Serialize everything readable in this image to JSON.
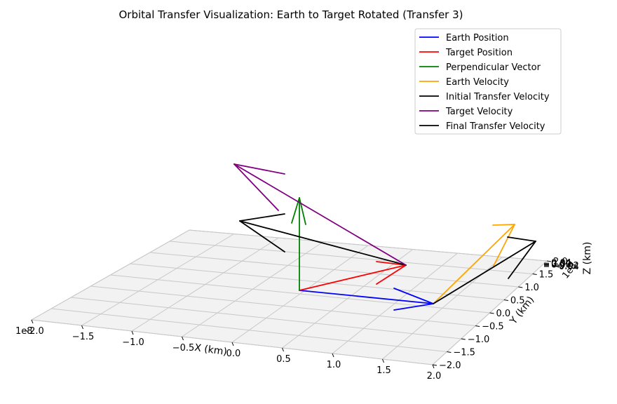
{
  "chart_data": {
    "type": "line",
    "title": "Orbital Transfer Visualization: Earth to Target Rotated (Transfer 3)",
    "xlabel": "X (km)",
    "ylabel": "Y (km)",
    "zlabel": "Z (km)",
    "x_offset_label": "1e8",
    "y_offset_label": "1e8",
    "x_ticks": [
      "−2.0",
      "−1.5",
      "−1.0",
      "−0.5",
      "0.0",
      "0.5",
      "1.0",
      "1.5",
      "2.0"
    ],
    "y_ticks": [
      "−2.0",
      "−1.5",
      "−1.0",
      "−0.5",
      "0.0",
      "0.5",
      "1.0",
      "1.5",
      "2.0"
    ],
    "z_ticks": [
      "−0.04",
      "−0.02",
      "0.00",
      "0.02",
      "0.04"
    ],
    "xlim": [
      -2.0,
      2.0
    ],
    "ylim": [
      -2.0,
      2.0
    ],
    "grid": true,
    "legend_position": "top-right",
    "series": [
      {
        "name": "Earth Position",
        "color": "#0000ff"
      },
      {
        "name": "Target Position",
        "color": "#ff0000"
      },
      {
        "name": "Perpendicular Vector",
        "color": "#008000"
      },
      {
        "name": "Earth Velocity",
        "color": "#ffa500"
      },
      {
        "name": "Initial Transfer Velocity",
        "color": "#000000"
      },
      {
        "name": "Target Velocity",
        "color": "#800080"
      },
      {
        "name": "Final Transfer Velocity",
        "color": "#000000"
      }
    ]
  }
}
